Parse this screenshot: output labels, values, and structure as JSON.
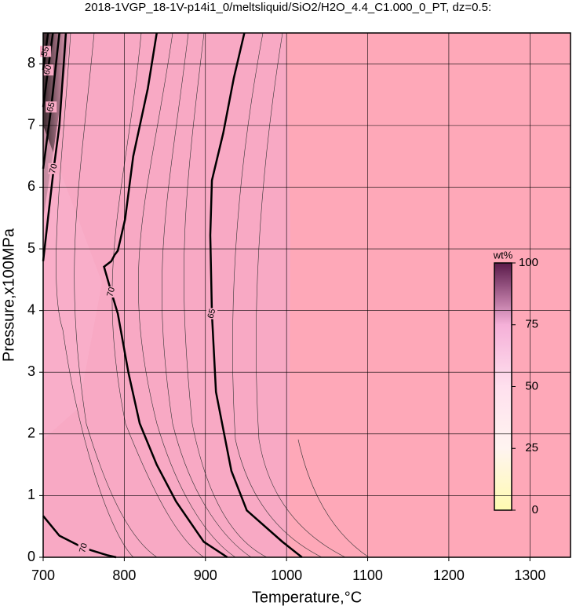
{
  "chart_data": {
    "type": "contour",
    "title": "2018-1VGP_18-1V-p14i1_0/meltsliquid/SiO2/H2O_4.4_C1.000_0_PT, dz=0.5:",
    "x_label": "Temperature,°C",
    "y_label": "Pressure,x100MPa",
    "xlim": [
      700,
      1350
    ],
    "xticks": [
      700,
      800,
      900,
      1000,
      1100,
      1200,
      1300
    ],
    "ylim": [
      0,
      8.5
    ],
    "yticks": [
      0,
      1,
      2,
      3,
      4,
      5,
      6,
      7,
      8
    ],
    "grid": true,
    "contours": [
      {
        "level": 70,
        "x": [
          840,
          829,
          811,
          801,
          792,
          788,
          784,
          775,
          784,
          792,
          805,
          819,
          840,
          864,
          898,
          927
        ],
        "y": [
          8.5,
          7.6,
          6.5,
          5.48,
          4.97,
          4.9,
          4.8,
          4.71,
          4.3,
          3.95,
          3.0,
          2.17,
          1.5,
          0.9,
          0.25,
          0
        ]
      },
      {
        "level": 65,
        "x": [
          948,
          935,
          922,
          908,
          906,
          908,
          913,
          932,
          951,
          995,
          1019
        ],
        "y": [
          8.5,
          7.77,
          6.88,
          6.11,
          5.22,
          3.95,
          2.68,
          1.4,
          0.76,
          0.25,
          0
        ]
      },
      {
        "level": 70,
        "x": [
          700,
          720,
          750,
          780,
          790
        ],
        "y": [
          0.67,
          0.35,
          0.15,
          0.03,
          0
        ]
      },
      {
        "level": 70,
        "x": [
          700,
          706,
          713,
          720,
          728
        ],
        "y": [
          4.8,
          5.5,
          6.3,
          7.0,
          8.5
        ]
      },
      {
        "level": 65,
        "x": [
          700,
          705,
          710,
          720
        ],
        "y": [
          6.3,
          6.8,
          7.3,
          8.5
        ]
      },
      {
        "level": 60,
        "x": [
          700,
          706,
          712
        ],
        "y": [
          7.3,
          7.9,
          8.5
        ]
      },
      {
        "level": 55,
        "x": [
          700,
          703,
          706
        ],
        "y": [
          7.9,
          8.2,
          8.5
        ]
      }
    ],
    "colorbar": {
      "label": "wt%",
      "lim": [
        0,
        100
      ],
      "ticks": [
        0,
        25,
        50,
        75,
        100
      ]
    }
  }
}
